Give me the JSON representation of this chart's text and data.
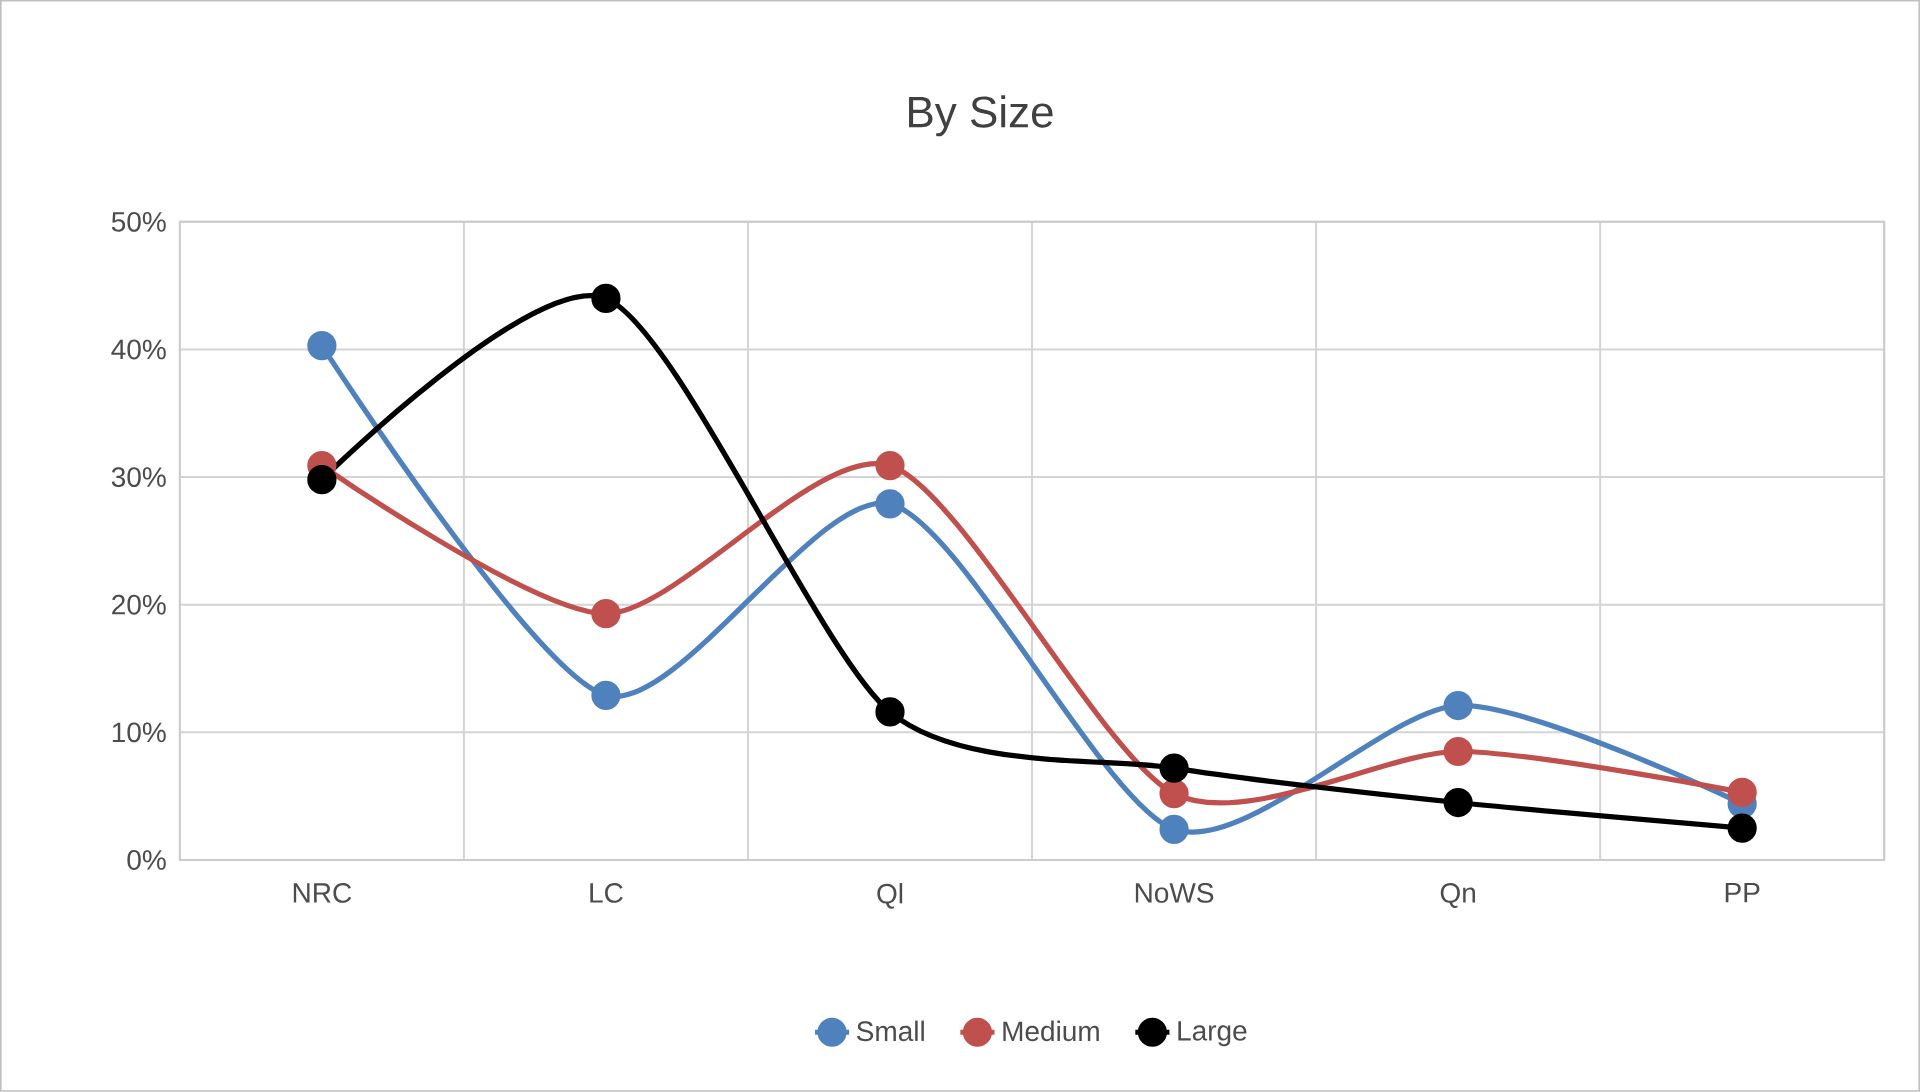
{
  "chart_data": {
    "type": "line",
    "title": "By Size",
    "categories": [
      "NRC",
      "LC",
      "Ql",
      "NoWS",
      "Qn",
      "PP"
    ],
    "series": [
      {
        "name": "Small",
        "color": "#4f81bd",
        "values": [
          40.3,
          12.9,
          27.9,
          2.4,
          12.1,
          4.4
        ]
      },
      {
        "name": "Medium",
        "color": "#c0504d",
        "values": [
          30.9,
          19.3,
          30.9,
          5.2,
          8.5,
          5.3
        ]
      },
      {
        "name": "Large",
        "color": "#000000",
        "values": [
          29.8,
          44.0,
          11.6,
          7.2,
          4.5,
          2.5
        ]
      }
    ],
    "ylim": [
      0,
      50
    ],
    "yticks": [
      {
        "value": 0,
        "label": "0%"
      },
      {
        "value": 10,
        "label": "10%"
      },
      {
        "value": 20,
        "label": "20%"
      },
      {
        "value": 30,
        "label": "30%"
      },
      {
        "value": 40,
        "label": "40%"
      },
      {
        "value": 50,
        "label": "50%"
      }
    ],
    "grid": true,
    "legend": "bottom",
    "marker": "circle",
    "line_style": "solid"
  }
}
